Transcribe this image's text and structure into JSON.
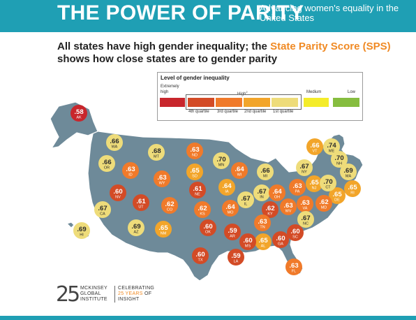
{
  "banner": {
    "title": "THE POWER OF PARITY",
    "subtitle": "Advancing women's equality in the United States"
  },
  "headline": {
    "part1": "All states have high gender inequality; the ",
    "accent": "State Parity Score (SPS)",
    "part2": "shows how close states are to gender parity"
  },
  "legend": {
    "title": "Level of gender inequality",
    "extremely_line1": "Extremely",
    "extremely_line2": "high",
    "high": "High",
    "high_sup": "2",
    "medium": "Medium",
    "low": "Low",
    "quartiles": [
      "4th quartile",
      "3rd quartile",
      "2nd quartile",
      "1st quartile"
    ],
    "colors": {
      "extremely_high": "#c8262c",
      "q4": "#d34b26",
      "q3": "#f07a2a",
      "q2": "#f2a52a",
      "q1": "#eedc7a",
      "medium": "#f4ec2a",
      "low": "#86bd3f"
    }
  },
  "states": [
    {
      "abbr": "AK",
      "value": ".58",
      "level": "extremely_high"
    },
    {
      "abbr": "WA",
      "value": ".66",
      "level": "q1"
    },
    {
      "abbr": "OR",
      "value": ".66",
      "level": "q1"
    },
    {
      "abbr": "ID",
      "value": ".63",
      "level": "q3"
    },
    {
      "abbr": "MT",
      "value": ".68",
      "level": "q1"
    },
    {
      "abbr": "WY",
      "value": ".63",
      "level": "q3"
    },
    {
      "abbr": "ND",
      "value": ".63",
      "level": "q3"
    },
    {
      "abbr": "SD",
      "value": ".65",
      "level": "q2"
    },
    {
      "abbr": "MN",
      "value": ".70",
      "level": "q1"
    },
    {
      "abbr": "WI",
      "value": ".64",
      "level": "q3"
    },
    {
      "abbr": "MI",
      "value": ".66",
      "level": "q1"
    },
    {
      "abbr": "NV",
      "value": ".60",
      "level": "q4"
    },
    {
      "abbr": "UT",
      "value": ".61",
      "level": "q4"
    },
    {
      "abbr": "NE",
      "value": ".61",
      "level": "q4"
    },
    {
      "abbr": "IA",
      "value": ".64",
      "level": "q2"
    },
    {
      "abbr": "IL",
      "value": ".67",
      "level": "q1"
    },
    {
      "abbr": "IN",
      "value": ".67",
      "level": "q1"
    },
    {
      "abbr": "OH",
      "value": ".64",
      "level": "q3"
    },
    {
      "abbr": "CA",
      "value": ".67",
      "level": "q1"
    },
    {
      "abbr": "CO",
      "value": ".62",
      "level": "q3"
    },
    {
      "abbr": "KS",
      "value": ".62",
      "level": "q3"
    },
    {
      "abbr": "MO",
      "value": ".64",
      "level": "q3"
    },
    {
      "abbr": "KY",
      "value": ".62",
      "level": "q4"
    },
    {
      "abbr": "WV",
      "value": ".63",
      "level": "q3"
    },
    {
      "abbr": "VA",
      "value": ".63",
      "level": "q3"
    },
    {
      "abbr": "PA",
      "value": ".63",
      "level": "q3"
    },
    {
      "abbr": "NJ",
      "value": ".65",
      "level": "q2"
    },
    {
      "abbr": "DE",
      "value": ".65",
      "level": "q2"
    },
    {
      "abbr": "MD",
      "value": ".62",
      "level": "q3"
    },
    {
      "abbr": "NY",
      "value": ".67",
      "level": "q1"
    },
    {
      "abbr": "CT",
      "value": ".70",
      "level": "q1"
    },
    {
      "abbr": "RI",
      "value": ".65",
      "level": "q2"
    },
    {
      "abbr": "MA",
      "value": ".69",
      "level": "q1"
    },
    {
      "abbr": "NH",
      "value": ".70",
      "level": "q1"
    },
    {
      "abbr": "VT",
      "value": ".66",
      "level": "q2"
    },
    {
      "abbr": "ME",
      "value": ".74",
      "level": "q1"
    },
    {
      "abbr": "AZ",
      "value": ".69",
      "level": "q1"
    },
    {
      "abbr": "NM",
      "value": ".65",
      "level": "q2"
    },
    {
      "abbr": "OK",
      "value": ".60",
      "level": "q4"
    },
    {
      "abbr": "AR",
      "value": ".59",
      "level": "q4"
    },
    {
      "abbr": "TN",
      "value": ".63",
      "level": "q3"
    },
    {
      "abbr": "NC",
      "value": ".67",
      "level": "q1"
    },
    {
      "abbr": "SC",
      "value": ".60",
      "level": "q4"
    },
    {
      "abbr": "GA",
      "value": ".60",
      "level": "q4"
    },
    {
      "abbr": "AL",
      "value": ".65",
      "level": "q2"
    },
    {
      "abbr": "MS",
      "value": ".60",
      "level": "q4"
    },
    {
      "abbr": "LA",
      "value": ".59",
      "level": "q4"
    },
    {
      "abbr": "TX",
      "value": ".60",
      "level": "q4"
    },
    {
      "abbr": "FL",
      "value": ".63",
      "level": "q3"
    },
    {
      "abbr": "HI",
      "value": ".69",
      "level": "q1"
    }
  ],
  "footer": {
    "logo_number": "25",
    "org_lines": [
      "MCKINSEY",
      "GLOBAL",
      "INSTITUTE"
    ],
    "celebrating_line1": "CELEBRATING",
    "celebrating_years": "25 YEARS",
    "celebrating_of": " OF",
    "celebrating_line3": "INSIGHT"
  }
}
